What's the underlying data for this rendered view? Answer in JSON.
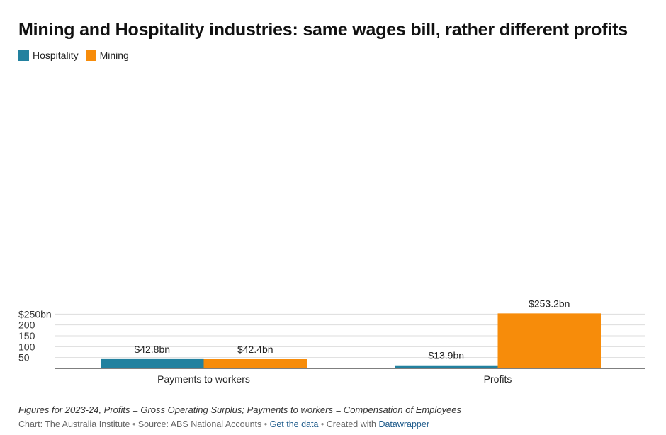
{
  "colors": {
    "hospitality": "#22819f",
    "mining": "#f78c0a"
  },
  "legend": [
    {
      "label": "Hospitality",
      "color": "#22819f"
    },
    {
      "label": "Mining",
      "color": "#f78c0a"
    }
  ],
  "chart_data": {
    "type": "bar",
    "title": "Mining and Hospitality industries: same wages bill, rather different profits",
    "categories": [
      "Payments to workers",
      "Profits"
    ],
    "series": [
      {
        "name": "Hospitality",
        "values": [
          42.8,
          13.9
        ],
        "labels": [
          "$42.8bn",
          "$13.9bn"
        ]
      },
      {
        "name": "Mining",
        "values": [
          42.4,
          253.2
        ],
        "labels": [
          "$42.4bn",
          "$253.2bn"
        ]
      }
    ],
    "ylim": [
      0,
      250
    ],
    "yticks": [
      {
        "value": 50,
        "label": "50"
      },
      {
        "value": 100,
        "label": "100"
      },
      {
        "value": 150,
        "label": "150"
      },
      {
        "value": 200,
        "label": "200"
      },
      {
        "value": 250,
        "label": "$250bn"
      }
    ],
    "grid": true,
    "legend_position": "top-left"
  },
  "footer": {
    "note": "Figures for 2023-24, Profits = Gross Operating Surplus; Payments to workers = Compensation of Employees",
    "credit_chart": "Chart: The Australia Institute",
    "credit_source": "Source: ABS National Accounts",
    "get_data": "Get the data",
    "created_with": "Created with",
    "datawrapper": "Datawrapper"
  }
}
